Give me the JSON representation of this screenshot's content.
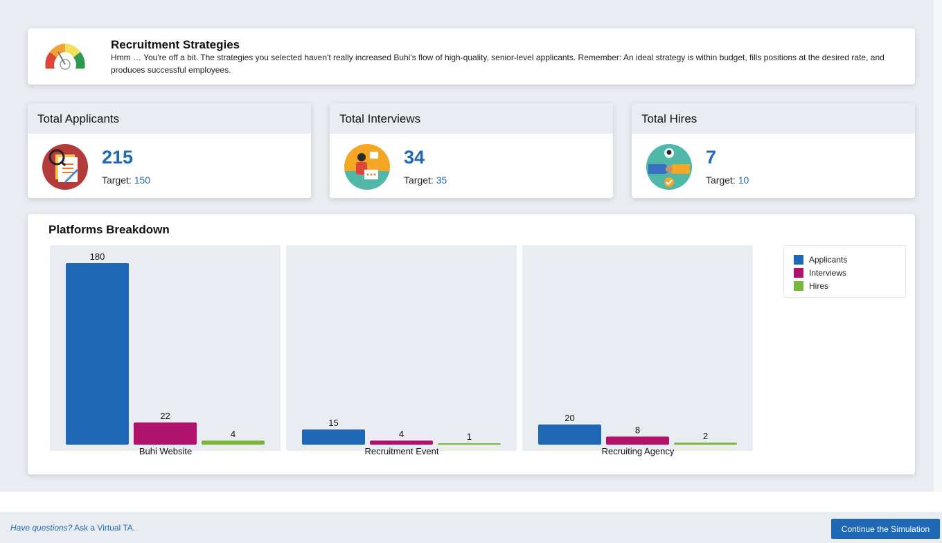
{
  "feedback": {
    "title": "Recruitment Strategies",
    "message": "Hmm … You're off a bit. The strategies you selected haven't really increased Buhi's flow of high-quality, senior-level applicants. Remember: An ideal strategy is within budget, fills positions at the desired rate, and produces successful employees.",
    "gauge_icon": "gauge-meter-icon"
  },
  "stats": [
    {
      "label": "Total Applicants",
      "value": "215",
      "target_label": "Target:",
      "target": "150",
      "icon": "applicant-resume-icon"
    },
    {
      "label": "Total Interviews",
      "value": "34",
      "target_label": "Target:",
      "target": "35",
      "icon": "interview-icon"
    },
    {
      "label": "Total Hires",
      "value": "7",
      "target_label": "Target:",
      "target": "10",
      "icon": "handshake-hire-icon"
    }
  ],
  "breakdown": {
    "title": "Platforms Breakdown"
  },
  "chart_data": {
    "type": "bar",
    "title": "Platforms Breakdown",
    "categories": [
      "Buhi Website",
      "Recruitment Event",
      "Recruiting Agency"
    ],
    "series": [
      {
        "name": "Applicants",
        "color": "#1f68b5",
        "values": [
          180,
          15,
          20
        ]
      },
      {
        "name": "Interviews",
        "color": "#b0116a",
        "values": [
          22,
          4,
          8
        ]
      },
      {
        "name": "Hires",
        "color": "#79b63a",
        "values": [
          4,
          1,
          2
        ]
      }
    ],
    "ylim": [
      0,
      180
    ],
    "legend": "top-right"
  },
  "footer": {
    "help_italic": "Have questions?",
    "help_link": "Ask a Virtual TA.",
    "continue_label": "Continue the Simulation"
  }
}
